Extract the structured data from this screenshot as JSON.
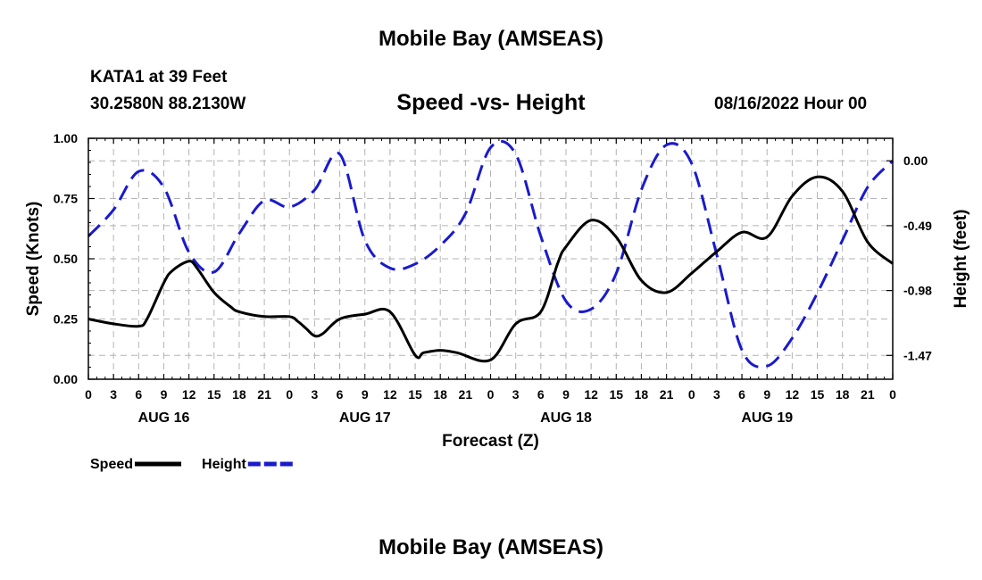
{
  "page": {
    "title": "Mobile Bay (AMSEAS)",
    "station": "KATA1 at 39 Feet",
    "coords": "30.2580N  88.2130W",
    "run_time": "08/16/2022 Hour 00",
    "footer_title": "Mobile Bay (AMSEAS)"
  },
  "chart_data": {
    "type": "line",
    "title": "Speed -vs- Height",
    "xlabel": "Forecast (Z)",
    "ylabel_left": "Speed (Knots)",
    "ylabel_right": "Height (feet)",
    "x_range_hours": [
      0,
      96
    ],
    "x_tick_step_hours": 3,
    "x_tick_labels": [
      "0",
      "3",
      "6",
      "9",
      "12",
      "15",
      "18",
      "21",
      "0",
      "3",
      "6",
      "9",
      "12",
      "15",
      "18",
      "21",
      "0",
      "3",
      "6",
      "9",
      "12",
      "15",
      "18",
      "21",
      "0",
      "3",
      "6",
      "9",
      "12",
      "15",
      "18",
      "21",
      "0"
    ],
    "date_labels": [
      {
        "label": "AUG 16",
        "hour": 9
      },
      {
        "label": "AUG 17",
        "hour": 33
      },
      {
        "label": "AUG 18",
        "hour": 57
      },
      {
        "label": "AUG 19",
        "hour": 81
      }
    ],
    "y_left": {
      "range": [
        0,
        1
      ],
      "ticks": [
        0,
        0.25,
        0.5,
        0.75,
        1.0
      ],
      "tick_labels": [
        "0.00",
        "0.25",
        "0.50",
        "0.75",
        "1.00"
      ]
    },
    "y_right": {
      "range": [
        -1.65,
        0.17
      ],
      "ticks": [
        0.0,
        -0.49,
        -0.98,
        -1.47
      ],
      "tick_labels": [
        "0.00",
        "-0.49",
        "-0.98",
        "-1.47"
      ]
    },
    "grid": true,
    "legend": [
      {
        "label": "Speed",
        "color": "#000000",
        "style": "solid"
      },
      {
        "label": "Height",
        "color": "#1a1acc",
        "style": "dashed"
      }
    ],
    "series": [
      {
        "name": "Speed",
        "axis": "left",
        "color": "#000000",
        "style": "solid",
        "x": [
          0,
          3,
          6,
          7,
          9,
          10,
          12,
          13,
          15,
          17,
          18,
          21,
          24,
          25,
          26,
          27,
          28,
          30,
          33,
          36,
          39,
          40,
          42,
          44,
          48,
          51,
          54,
          56,
          57,
          60,
          63,
          66,
          69,
          72,
          75,
          78,
          81,
          84,
          87,
          90,
          93,
          96
        ],
        "y": [
          0.25,
          0.23,
          0.22,
          0.25,
          0.4,
          0.45,
          0.49,
          0.46,
          0.36,
          0.3,
          0.28,
          0.26,
          0.26,
          0.24,
          0.21,
          0.18,
          0.19,
          0.25,
          0.27,
          0.28,
          0.1,
          0.11,
          0.12,
          0.11,
          0.08,
          0.23,
          0.28,
          0.48,
          0.55,
          0.66,
          0.59,
          0.41,
          0.36,
          0.44,
          0.53,
          0.61,
          0.59,
          0.76,
          0.84,
          0.78,
          0.57,
          0.48
        ]
      },
      {
        "name": "Height",
        "axis": "right",
        "color": "#1a1acc",
        "style": "dashed",
        "x": [
          0,
          3,
          6,
          9,
          12,
          15,
          18,
          21,
          24,
          27,
          30,
          33,
          36,
          39,
          42,
          45,
          48,
          51,
          54,
          57,
          60,
          63,
          66,
          69,
          72,
          75,
          78,
          81,
          84,
          87,
          90,
          93,
          96
        ],
        "y": [
          -0.57,
          -0.37,
          -0.08,
          -0.2,
          -0.69,
          -0.84,
          -0.55,
          -0.3,
          -0.35,
          -0.22,
          0.05,
          -0.6,
          -0.81,
          -0.78,
          -0.64,
          -0.4,
          0.1,
          0.05,
          -0.57,
          -1.06,
          -1.12,
          -0.85,
          -0.22,
          0.12,
          -0.02,
          -0.71,
          -1.43,
          -1.55,
          -1.34,
          -1.0,
          -0.6,
          -0.2,
          0.0
        ]
      }
    ]
  }
}
